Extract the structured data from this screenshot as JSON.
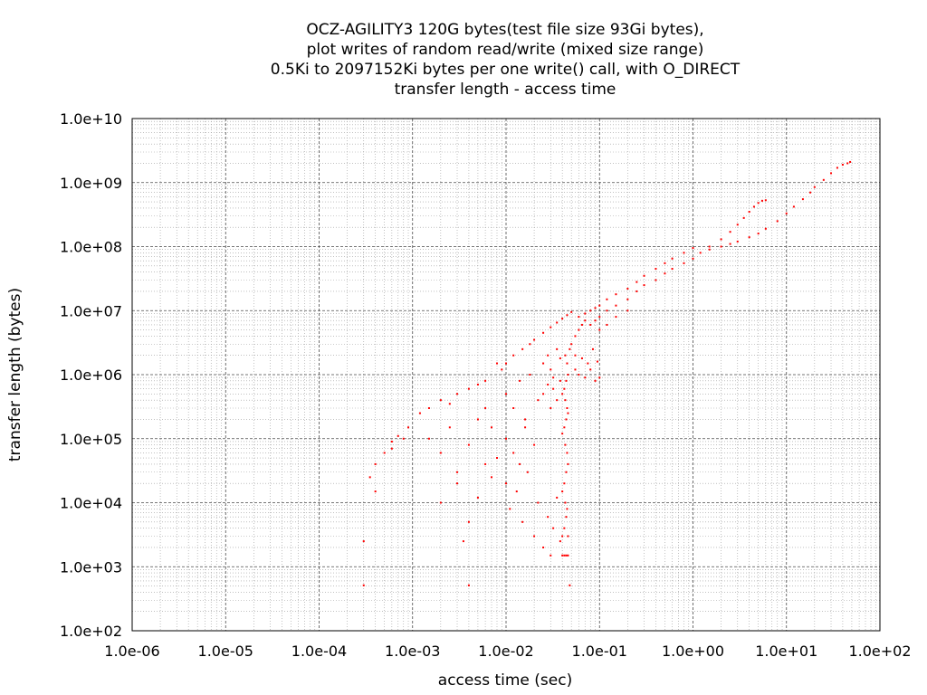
{
  "chart_data": {
    "type": "scatter",
    "title": [
      "OCZ-AGILITY3 120G bytes(test file size 93Gi bytes),",
      "plot writes of random read/write (mixed size range)",
      "0.5Ki to 2097152Ki bytes per one write() call, with O_DIRECT",
      "transfer length - access time"
    ],
    "xlabel": "access time (sec)",
    "ylabel": "transfer length (bytes)",
    "xscale": "log",
    "yscale": "log",
    "xlim": [
      1e-06,
      100
    ],
    "ylim": [
      100,
      10000000000.0
    ],
    "x_ticks": [
      "1.0e-06",
      "1.0e-05",
      "1.0e-04",
      "1.0e-03",
      "1.0e-02",
      "1.0e-01",
      "1.0e+00",
      "1.0e+01",
      "1.0e+02"
    ],
    "y_ticks": [
      "1.0e+02",
      "1.0e+03",
      "1.0e+04",
      "1.0e+05",
      "1.0e+06",
      "1.0e+07",
      "1.0e+08",
      "1.0e+09",
      "1.0e+10"
    ],
    "grid": true,
    "grid_minor": true,
    "point_color": "#ff0000",
    "points": [
      [
        0.0003,
        512
      ],
      [
        0.0003,
        2500
      ],
      [
        0.0035,
        2500
      ],
      [
        0.004,
        512
      ],
      [
        0.0004,
        15000
      ],
      [
        0.00035,
        25000
      ],
      [
        0.0004,
        40000
      ],
      [
        0.0005,
        60000
      ],
      [
        0.0006,
        90000
      ],
      [
        0.0007,
        110000
      ],
      [
        0.0008,
        100000
      ],
      [
        0.0006,
        70000
      ],
      [
        0.0009,
        150000
      ],
      [
        0.0012,
        250000
      ],
      [
        0.0015,
        300000
      ],
      [
        0.002,
        400000
      ],
      [
        0.0025,
        350000
      ],
      [
        0.003,
        500000
      ],
      [
        0.004,
        600000
      ],
      [
        0.005,
        700000
      ],
      [
        0.006,
        800000
      ],
      [
        0.0015,
        100000
      ],
      [
        0.002,
        60000
      ],
      [
        0.0025,
        150000
      ],
      [
        0.003,
        30000
      ],
      [
        0.004,
        80000
      ],
      [
        0.005,
        200000
      ],
      [
        0.006,
        300000
      ],
      [
        0.007,
        150000
      ],
      [
        0.008,
        50000
      ],
      [
        0.002,
        10000
      ],
      [
        0.003,
        20000
      ],
      [
        0.004,
        5000
      ],
      [
        0.005,
        12000
      ],
      [
        0.006,
        40000
      ],
      [
        0.007,
        25000
      ],
      [
        0.008,
        1500000
      ],
      [
        0.009,
        1200000
      ],
      [
        0.01,
        1500000
      ],
      [
        0.012,
        2000000
      ],
      [
        0.015,
        2500000
      ],
      [
        0.018,
        3000000
      ],
      [
        0.02,
        3500000
      ],
      [
        0.025,
        4500000
      ],
      [
        0.03,
        5500000
      ],
      [
        0.035,
        6500000
      ],
      [
        0.04,
        7500000
      ],
      [
        0.045,
        8500000
      ],
      [
        0.05,
        9500000
      ],
      [
        0.01,
        500000
      ],
      [
        0.012,
        300000
      ],
      [
        0.014,
        800000
      ],
      [
        0.016,
        200000
      ],
      [
        0.018,
        1000000
      ],
      [
        0.01,
        100000
      ],
      [
        0.012,
        60000
      ],
      [
        0.014,
        40000
      ],
      [
        0.016,
        150000
      ],
      [
        0.02,
        80000
      ],
      [
        0.022,
        400000
      ],
      [
        0.01,
        20000
      ],
      [
        0.011,
        8000
      ],
      [
        0.013,
        15000
      ],
      [
        0.015,
        5000
      ],
      [
        0.017,
        30000
      ],
      [
        0.02,
        3000
      ],
      [
        0.022,
        10000
      ],
      [
        0.025,
        2000
      ],
      [
        0.028,
        6000
      ],
      [
        0.03,
        1500
      ],
      [
        0.032,
        4000
      ],
      [
        0.035,
        12000
      ],
      [
        0.038,
        2500
      ],
      [
        0.025,
        1500000
      ],
      [
        0.028,
        2000000
      ],
      [
        0.03,
        1200000
      ],
      [
        0.032,
        900000
      ],
      [
        0.035,
        2500000
      ],
      [
        0.038,
        1800000
      ],
      [
        0.025,
        500000
      ],
      [
        0.028,
        700000
      ],
      [
        0.03,
        300000
      ],
      [
        0.032,
        600000
      ],
      [
        0.035,
        400000
      ],
      [
        0.038,
        800000
      ],
      [
        0.04,
        1500
      ],
      [
        0.042,
        1500
      ],
      [
        0.044,
        1500
      ],
      [
        0.046,
        1500
      ],
      [
        0.048,
        512
      ],
      [
        0.04,
        3000
      ],
      [
        0.042,
        4000
      ],
      [
        0.044,
        6000
      ],
      [
        0.046,
        3000
      ],
      [
        0.045,
        8000
      ],
      [
        0.043,
        10000
      ],
      [
        0.04,
        15000
      ],
      [
        0.042,
        20000
      ],
      [
        0.044,
        30000
      ],
      [
        0.046,
        40000
      ],
      [
        0.045,
        60000
      ],
      [
        0.043,
        80000
      ],
      [
        0.04,
        120000
      ],
      [
        0.042,
        150000
      ],
      [
        0.044,
        200000
      ],
      [
        0.046,
        250000
      ],
      [
        0.045,
        300000
      ],
      [
        0.043,
        400000
      ],
      [
        0.04,
        500000
      ],
      [
        0.042,
        600000
      ],
      [
        0.044,
        800000
      ],
      [
        0.046,
        1000000
      ],
      [
        0.045,
        1500000
      ],
      [
        0.043,
        2000000
      ],
      [
        0.048,
        2500000
      ],
      [
        0.05,
        3000000
      ],
      [
        0.055,
        4000000
      ],
      [
        0.06,
        5000000
      ],
      [
        0.065,
        6000000
      ],
      [
        0.07,
        7000000
      ],
      [
        0.055,
        1200000
      ],
      [
        0.06,
        1000000
      ],
      [
        0.07,
        900000
      ],
      [
        0.08,
        1200000
      ],
      [
        0.09,
        800000
      ],
      [
        0.1,
        900000
      ],
      [
        0.055,
        2000000
      ],
      [
        0.065,
        1800000
      ],
      [
        0.075,
        1500000
      ],
      [
        0.085,
        2500000
      ],
      [
        0.095,
        1600000
      ],
      [
        0.06,
        8000000
      ],
      [
        0.07,
        9000000
      ],
      [
        0.08,
        10000000
      ],
      [
        0.09,
        11000000
      ],
      [
        0.1,
        12000000
      ],
      [
        0.12,
        15000000
      ],
      [
        0.15,
        18000000
      ],
      [
        0.2,
        22000000
      ],
      [
        0.25,
        28000000
      ],
      [
        0.3,
        35000000
      ],
      [
        0.4,
        45000000
      ],
      [
        0.5,
        55000000
      ],
      [
        0.6,
        65000000
      ],
      [
        0.8,
        80000000
      ],
      [
        1.0,
        95000000
      ],
      [
        0.1,
        8000000
      ],
      [
        0.12,
        10000000
      ],
      [
        0.15,
        12000000
      ],
      [
        0.2,
        15000000
      ],
      [
        0.25,
        20000000
      ],
      [
        0.3,
        25000000
      ],
      [
        0.4,
        30000000
      ],
      [
        0.5,
        38000000
      ],
      [
        0.6,
        45000000
      ],
      [
        0.8,
        55000000
      ],
      [
        1.0,
        65000000
      ],
      [
        1.2,
        80000000
      ],
      [
        1.5,
        100000000
      ],
      [
        2.0,
        130000000
      ],
      [
        2.5,
        170000000
      ],
      [
        3.0,
        220000000
      ],
      [
        3.5,
        280000000
      ],
      [
        4.0,
        350000000
      ],
      [
        4.5,
        420000000
      ],
      [
        5.0,
        480000000
      ],
      [
        5.5,
        520000000
      ],
      [
        6.0,
        530000000
      ],
      [
        1.5,
        90000000
      ],
      [
        2.0,
        100000000
      ],
      [
        2.5,
        110000000
      ],
      [
        3.0,
        120000000
      ],
      [
        4.0,
        140000000
      ],
      [
        5.0,
        160000000
      ],
      [
        6.0,
        190000000
      ],
      [
        8.0,
        250000000
      ],
      [
        10.0,
        330000000
      ],
      [
        12.0,
        420000000
      ],
      [
        15.0,
        550000000
      ],
      [
        18.0,
        700000000
      ],
      [
        20.0,
        850000000
      ],
      [
        25.0,
        1100000000
      ],
      [
        30.0,
        1400000000
      ],
      [
        35.0,
        1700000000
      ],
      [
        40.0,
        1900000000
      ],
      [
        45.0,
        2000000000
      ],
      [
        48.0,
        2100000000
      ],
      [
        0.15,
        8000000
      ],
      [
        0.2,
        10000000
      ],
      [
        0.12,
        6000000
      ],
      [
        0.1,
        5000000
      ],
      [
        0.09,
        7000000
      ],
      [
        0.08,
        6000000
      ]
    ]
  }
}
